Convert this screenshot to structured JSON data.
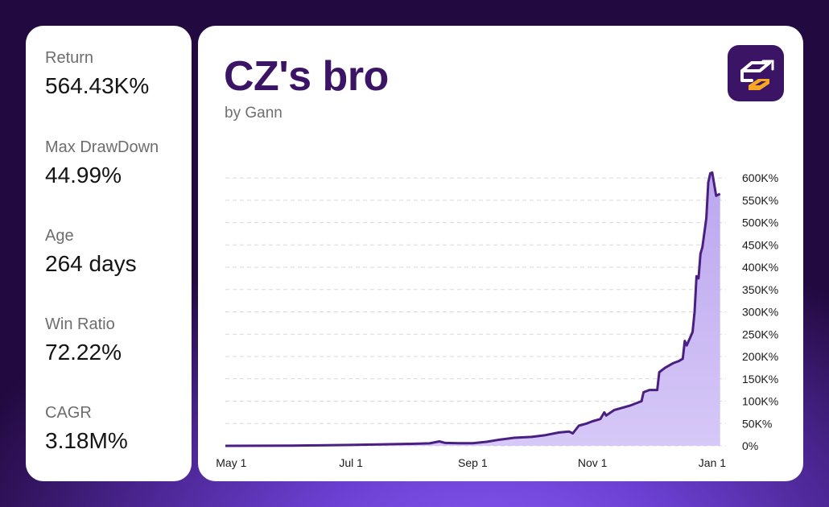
{
  "stats": [
    {
      "label": "Return",
      "value": "564.43K%"
    },
    {
      "label": "Max DrawDown",
      "value": "44.99%"
    },
    {
      "label": "Age",
      "value": "264 days"
    },
    {
      "label": "Win Ratio",
      "value": "72.22%"
    },
    {
      "label": "CAGR",
      "value": "3.18M%"
    }
  ],
  "colors": {
    "line": "#4a1f82",
    "fill_top": "#bba6ee",
    "fill_bottom": "#d6c8f7",
    "grid": "#d9d9d9",
    "title": "#3b1466",
    "logo_bg": "#3b1466",
    "logo_accent": "#f5a623"
  },
  "chart_data": {
    "type": "area",
    "title": "CZ's bro",
    "subtitle": "by Gann",
    "xlabel": "",
    "ylabel": "",
    "x_ticks": [
      {
        "label": "May 1",
        "x": "2023-05-01"
      },
      {
        "label": "Jul 1",
        "x": "2023-07-01"
      },
      {
        "label": "Sep 1",
        "x": "2023-09-01"
      },
      {
        "label": "Nov 1",
        "x": "2023-11-01"
      },
      {
        "label": "Jan 1",
        "x": "2024-01-01"
      }
    ],
    "y_ticks": [
      {
        "label": "0%",
        "value": 0
      },
      {
        "label": "50K%",
        "value": 50000
      },
      {
        "label": "100K%",
        "value": 100000
      },
      {
        "label": "150K%",
        "value": 150000
      },
      {
        "label": "200K%",
        "value": 200000
      },
      {
        "label": "250K%",
        "value": 250000
      },
      {
        "label": "300K%",
        "value": 300000
      },
      {
        "label": "350K%",
        "value": 350000
      },
      {
        "label": "400K%",
        "value": 400000
      },
      {
        "label": "450K%",
        "value": 450000
      },
      {
        "label": "500K%",
        "value": 500000
      },
      {
        "label": "550K%",
        "value": 550000
      },
      {
        "label": "600K%",
        "value": 600000
      }
    ],
    "ylim": [
      0,
      620000
    ],
    "xlim": [
      "2023-04-28",
      "2024-01-08"
    ],
    "grid": true,
    "y_axis_side": "right",
    "series": [
      {
        "points": [
          [
            "2023-04-28",
            0
          ],
          [
            "2023-05-15",
            200
          ],
          [
            "2023-06-01",
            500
          ],
          [
            "2023-06-15",
            1000
          ],
          [
            "2023-07-01",
            2000
          ],
          [
            "2023-07-15",
            3000
          ],
          [
            "2023-08-01",
            4500
          ],
          [
            "2023-08-10",
            5500
          ],
          [
            "2023-08-15",
            10000
          ],
          [
            "2023-08-18",
            6500
          ],
          [
            "2023-08-25",
            6000
          ],
          [
            "2023-09-01",
            6000
          ],
          [
            "2023-09-08",
            9000
          ],
          [
            "2023-09-15",
            14000
          ],
          [
            "2023-09-22",
            18000
          ],
          [
            "2023-10-01",
            20000
          ],
          [
            "2023-10-08",
            24000
          ],
          [
            "2023-10-15",
            30000
          ],
          [
            "2023-10-20",
            32000
          ],
          [
            "2023-10-22",
            28000
          ],
          [
            "2023-10-25",
            45000
          ],
          [
            "2023-10-29",
            50000
          ],
          [
            "2023-11-01",
            55000
          ],
          [
            "2023-11-05",
            60000
          ],
          [
            "2023-11-07",
            75000
          ],
          [
            "2023-11-08",
            68000
          ],
          [
            "2023-11-12",
            80000
          ],
          [
            "2023-11-20",
            90000
          ],
          [
            "2023-11-26",
            100000
          ],
          [
            "2023-11-27",
            120000
          ],
          [
            "2023-11-30",
            125000
          ],
          [
            "2023-12-04",
            125000
          ],
          [
            "2023-12-05",
            165000
          ],
          [
            "2023-12-08",
            175000
          ],
          [
            "2023-12-12",
            185000
          ],
          [
            "2023-12-15",
            190000
          ],
          [
            "2023-12-17",
            195000
          ],
          [
            "2023-12-18",
            235000
          ],
          [
            "2023-12-19",
            225000
          ],
          [
            "2023-12-21",
            245000
          ],
          [
            "2023-12-22",
            255000
          ],
          [
            "2023-12-23",
            300000
          ],
          [
            "2023-12-24",
            380000
          ],
          [
            "2023-12-25",
            375000
          ],
          [
            "2023-12-26",
            430000
          ],
          [
            "2023-12-27",
            445000
          ],
          [
            "2023-12-29",
            510000
          ],
          [
            "2023-12-30",
            590000
          ],
          [
            "2023-12-31",
            610000
          ],
          [
            "2024-01-01",
            612000
          ],
          [
            "2024-01-03",
            560000
          ],
          [
            "2024-01-05",
            564430
          ]
        ]
      }
    ]
  }
}
